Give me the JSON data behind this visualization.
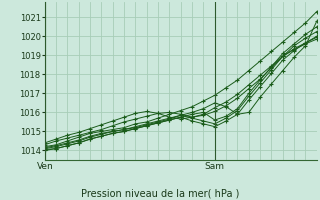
{
  "title": "Pression niveau de la mer( hPa )",
  "xlabel_ven": "Ven",
  "xlabel_sam": "Sam",
  "ylim": [
    1013.5,
    1021.8
  ],
  "xlim": [
    0,
    48
  ],
  "yticks": [
    1014,
    1015,
    1016,
    1017,
    1018,
    1019,
    1020,
    1021
  ],
  "ven_x": 0,
  "sam_x": 30,
  "bg_color": "#cce8dc",
  "line_color": "#1a5c1a",
  "grid_color": "#a8cdb8",
  "lines": [
    {
      "x": [
        0,
        2,
        4,
        6,
        8,
        10,
        12,
        14,
        16,
        18,
        20,
        22,
        24,
        26,
        28,
        30,
        32,
        34,
        36,
        38,
        40,
        42,
        44,
        46,
        48
      ],
      "y": [
        1014.2,
        1014.3,
        1014.5,
        1014.7,
        1014.9,
        1015.0,
        1015.1,
        1015.2,
        1015.4,
        1015.5,
        1015.7,
        1015.9,
        1016.1,
        1016.3,
        1016.6,
        1016.9,
        1017.3,
        1017.7,
        1018.2,
        1018.7,
        1019.2,
        1019.7,
        1020.2,
        1020.7,
        1021.3
      ]
    },
    {
      "x": [
        0,
        2,
        4,
        6,
        8,
        10,
        12,
        14,
        16,
        18,
        20,
        22,
        24,
        26,
        28,
        30,
        32,
        34,
        36,
        38,
        40,
        42,
        44,
        46,
        48
      ],
      "y": [
        1014.1,
        1014.2,
        1014.35,
        1014.5,
        1014.7,
        1014.85,
        1015.0,
        1015.1,
        1015.2,
        1015.35,
        1015.5,
        1015.65,
        1015.85,
        1016.0,
        1016.2,
        1016.5,
        1016.3,
        1015.9,
        1016.0,
        1016.8,
        1017.5,
        1018.2,
        1018.9,
        1019.5,
        1020.8
      ]
    },
    {
      "x": [
        0,
        2,
        4,
        6,
        8,
        10,
        12,
        14,
        16,
        18,
        20,
        22,
        24,
        26,
        28,
        30,
        32,
        34,
        36,
        38,
        40,
        42,
        44,
        46,
        48
      ],
      "y": [
        1014.0,
        1014.1,
        1014.25,
        1014.4,
        1014.6,
        1014.75,
        1014.9,
        1015.0,
        1015.15,
        1015.3,
        1015.45,
        1015.6,
        1015.75,
        1015.9,
        1016.0,
        1015.6,
        1015.8,
        1016.2,
        1017.0,
        1017.7,
        1018.4,
        1019.1,
        1019.6,
        1020.1,
        1020.5
      ]
    },
    {
      "x": [
        0,
        2,
        4,
        6,
        8,
        10,
        12,
        14,
        16,
        18,
        20,
        22,
        24,
        26,
        28,
        30,
        32,
        34,
        36,
        38,
        40,
        42,
        44,
        46,
        48
      ],
      "y": [
        1014.15,
        1014.25,
        1014.4,
        1014.55,
        1014.75,
        1014.9,
        1015.0,
        1015.1,
        1015.25,
        1015.4,
        1015.55,
        1015.7,
        1015.85,
        1015.7,
        1015.55,
        1015.4,
        1015.7,
        1016.1,
        1016.85,
        1017.55,
        1018.25,
        1018.95,
        1019.5,
        1019.9,
        1020.25
      ]
    },
    {
      "x": [
        0,
        2,
        4,
        6,
        8,
        10,
        12,
        14,
        16,
        18,
        20,
        22,
        24,
        26,
        28,
        30,
        32,
        34,
        36,
        38,
        40,
        42,
        44,
        46,
        48
      ],
      "y": [
        1014.05,
        1014.1,
        1014.25,
        1014.4,
        1014.6,
        1014.75,
        1014.9,
        1015.0,
        1015.15,
        1015.3,
        1015.45,
        1015.6,
        1015.75,
        1015.55,
        1015.4,
        1015.25,
        1015.55,
        1015.9,
        1016.65,
        1017.35,
        1018.05,
        1018.75,
        1019.25,
        1019.65,
        1020.0
      ]
    },
    {
      "x": [
        0,
        2,
        4,
        6,
        8,
        10,
        12,
        14,
        16,
        18,
        20,
        22,
        24,
        26,
        28,
        30,
        32,
        34,
        36,
        38,
        40,
        42,
        44,
        46,
        48
      ],
      "y": [
        1014.3,
        1014.5,
        1014.65,
        1014.8,
        1014.95,
        1015.1,
        1015.3,
        1015.5,
        1015.65,
        1015.8,
        1015.95,
        1016.0,
        1015.9,
        1015.75,
        1015.85,
        1016.05,
        1016.35,
        1016.75,
        1017.25,
        1017.75,
        1018.35,
        1018.95,
        1019.35,
        1019.65,
        1019.95
      ]
    },
    {
      "x": [
        0,
        2,
        4,
        6,
        8,
        10,
        12,
        14,
        16,
        18,
        20,
        22,
        24,
        26,
        28,
        30,
        32,
        34,
        36,
        38,
        40,
        42,
        44,
        46,
        48
      ],
      "y": [
        1014.4,
        1014.6,
        1014.8,
        1014.95,
        1015.15,
        1015.35,
        1015.55,
        1015.75,
        1015.95,
        1016.05,
        1015.95,
        1015.75,
        1015.65,
        1015.75,
        1015.9,
        1016.25,
        1016.55,
        1016.95,
        1017.45,
        1017.95,
        1018.45,
        1018.95,
        1019.3,
        1019.6,
        1019.85
      ]
    }
  ]
}
